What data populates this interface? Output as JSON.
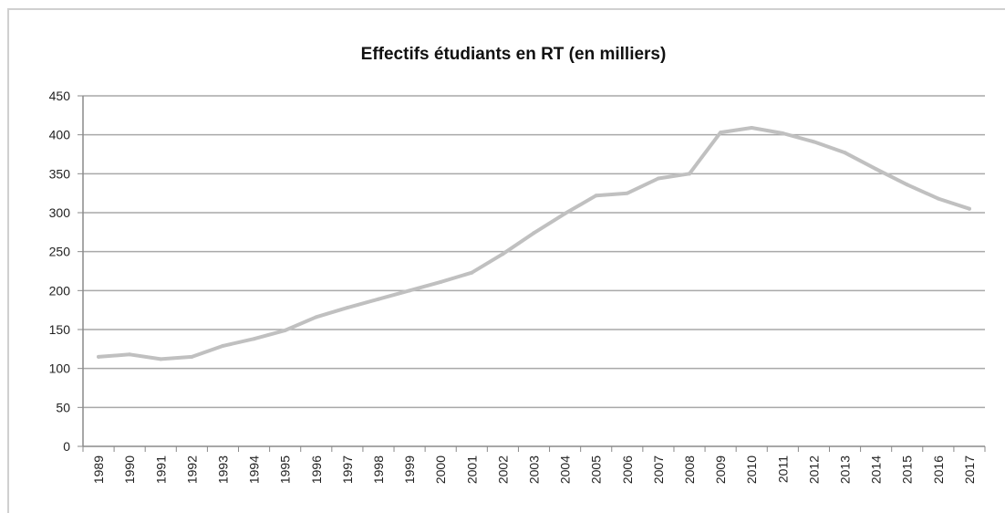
{
  "chart_data": {
    "type": "line",
    "title": "Effectifs étudiants en RT (en milliers)",
    "xlabel": "",
    "ylabel": "",
    "ylim": [
      0,
      450
    ],
    "yticks": [
      0,
      50,
      100,
      150,
      200,
      250,
      300,
      350,
      400,
      450
    ],
    "grid": true,
    "legend": "none",
    "line_color": "#c0c0c0",
    "categories": [
      "1989",
      "1990",
      "1991",
      "1992",
      "1993",
      "1994",
      "1995",
      "1996",
      "1997",
      "1998",
      "1999",
      "2000",
      "2001",
      "2002",
      "2003",
      "2004",
      "2005",
      "2006",
      "2007",
      "2008",
      "2009",
      "2010",
      "2011",
      "2012",
      "2013",
      "2014",
      "2015",
      "2016",
      "2017"
    ],
    "series": [
      {
        "values": [
          115,
          118,
          112,
          115,
          129,
          138,
          149,
          166,
          178,
          189,
          200,
          211,
          223,
          247,
          274,
          299,
          322,
          325,
          344,
          350,
          403,
          409,
          402,
          391,
          377,
          356,
          336,
          318,
          305
        ]
      }
    ]
  }
}
